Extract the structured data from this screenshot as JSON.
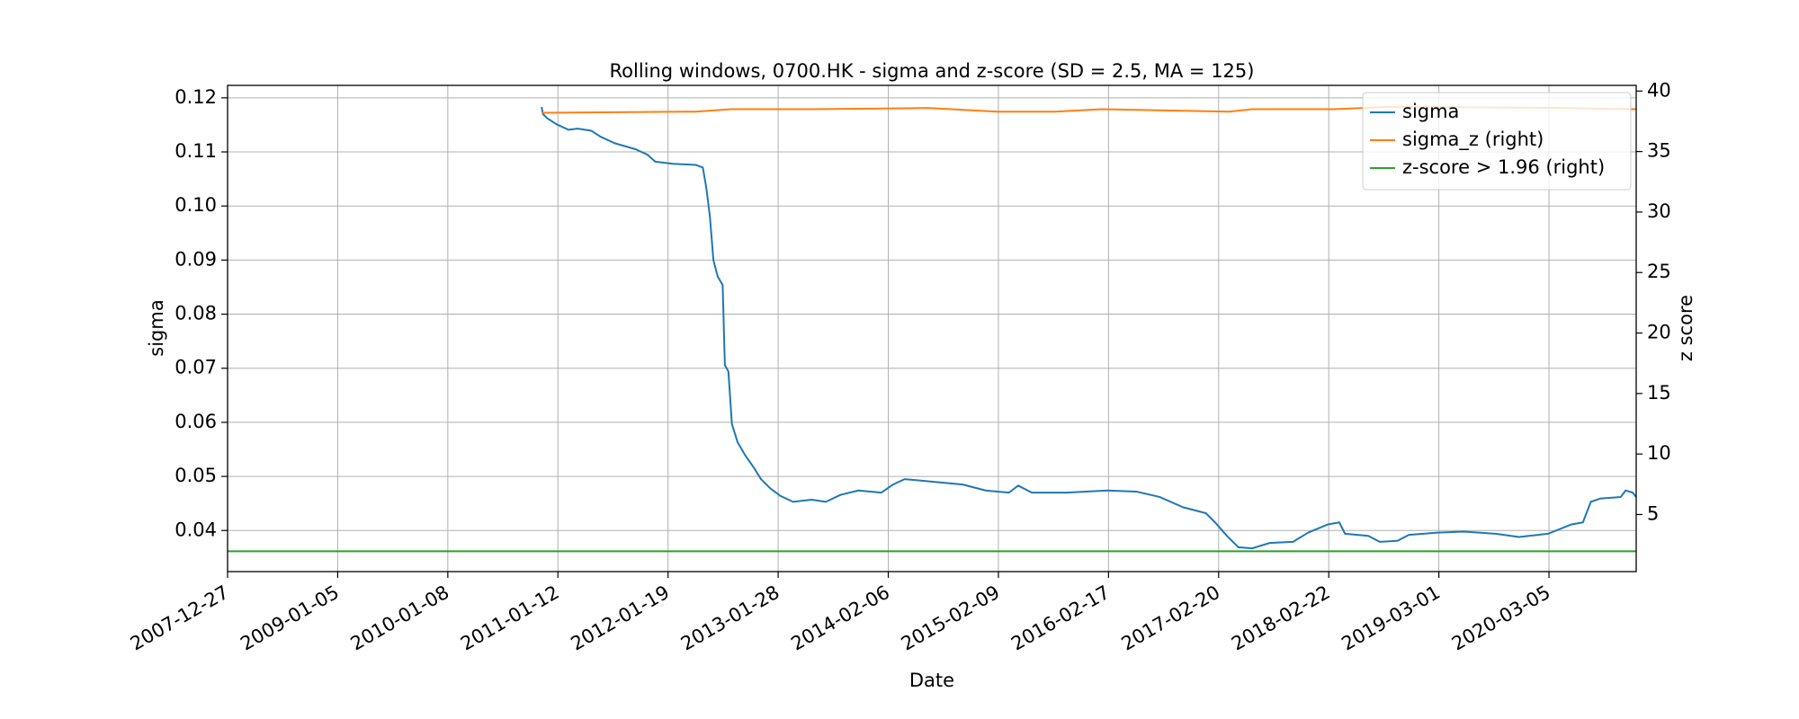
{
  "chart_data": {
    "type": "line",
    "title": "Rolling windows, 0700.HK - sigma and z-score (SD = 2.5, MA = 125)",
    "x_label": "Date",
    "y_label": "sigma",
    "y2_label": "z score",
    "xlim": [
      0,
      3198
    ],
    "xticks": [
      {
        "value": 0,
        "label": "2007-12-27"
      },
      {
        "value": 250,
        "label": "2009-01-05"
      },
      {
        "value": 500,
        "label": "2010-01-08"
      },
      {
        "value": 750,
        "label": "2011-01-12"
      },
      {
        "value": 1000,
        "label": "2012-01-19"
      },
      {
        "value": 1250,
        "label": "2013-01-28"
      },
      {
        "value": 1500,
        "label": "2014-02-06"
      },
      {
        "value": 1750,
        "label": "2015-02-09"
      },
      {
        "value": 2000,
        "label": "2016-02-17"
      },
      {
        "value": 2250,
        "label": "2017-02-20"
      },
      {
        "value": 2500,
        "label": "2018-02-22"
      },
      {
        "value": 2750,
        "label": "2019-03-01"
      },
      {
        "value": 3000,
        "label": "2020-03-05"
      }
    ],
    "ylim": [
      0.0324,
      0.1223
    ],
    "yticks": [
      0.04,
      0.05,
      0.06,
      0.07,
      0.08,
      0.09,
      {
        "value": 0.1,
        "label": "0.10"
      },
      0.11,
      0.12
    ],
    "y2lim": [
      0.28,
      40.47
    ],
    "y2ticks": [
      5,
      10,
      15,
      20,
      25,
      30,
      35,
      40
    ],
    "grid": true,
    "legend": "upper right",
    "series": [
      {
        "name": "sigma",
        "color": "#1f77b4",
        "x": [
          713,
          716,
          726,
          747,
          774,
          795,
          826,
          847,
          879,
          926,
          953,
          971,
          1011,
          1063,
          1079,
          1087,
          1095,
          1103,
          1113,
          1124,
          1129,
          1137,
          1145,
          1158,
          1176,
          1195,
          1211,
          1232,
          1255,
          1284,
          1326,
          1358,
          1392,
          1432,
          1484,
          1511,
          1537,
          1590,
          1669,
          1721,
          1774,
          1795,
          1826,
          1905,
          1997,
          2063,
          2116,
          2169,
          2221,
          2242,
          2269,
          2295,
          2326,
          2366,
          2419,
          2453,
          2497,
          2524,
          2537,
          2590,
          2616,
          2656,
          2682,
          2748,
          2806,
          2879,
          2932,
          2998,
          3050,
          3077,
          3095,
          3116,
          3163,
          3174,
          3190,
          3198
        ],
        "values": [
          0.1183,
          0.117,
          0.1162,
          0.1151,
          0.1141,
          0.1143,
          0.1139,
          0.1128,
          0.1116,
          0.1105,
          0.1095,
          0.1082,
          0.1078,
          0.1076,
          0.1071,
          0.1033,
          0.0981,
          0.09,
          0.0869,
          0.0854,
          0.0706,
          0.0694,
          0.0597,
          0.0563,
          0.0538,
          0.0516,
          0.0495,
          0.0478,
          0.0464,
          0.0453,
          0.0457,
          0.0453,
          0.0466,
          0.0474,
          0.047,
          0.0485,
          0.0495,
          0.0491,
          0.0485,
          0.0474,
          0.047,
          0.0483,
          0.047,
          0.047,
          0.0474,
          0.0472,
          0.0462,
          0.0443,
          0.0432,
          0.0415,
          0.039,
          0.0369,
          0.0367,
          0.0377,
          0.0379,
          0.0396,
          0.0411,
          0.0415,
          0.0394,
          0.039,
          0.0379,
          0.0381,
          0.0392,
          0.0396,
          0.0398,
          0.0394,
          0.0388,
          0.0394,
          0.0411,
          0.0415,
          0.0453,
          0.0459,
          0.0462,
          0.0474,
          0.047,
          0.0462
        ]
      },
      {
        "name": "sigma_z (right)",
        "color": "#ff7f0e",
        "axis": "y2",
        "x": [
          713,
          1063,
          1142,
          1326,
          1590,
          1747,
          1879,
          1984,
          2274,
          2326,
          2511,
          2643,
          3037,
          3198
        ],
        "values": [
          38.2,
          38.3,
          38.5,
          38.5,
          38.6,
          38.3,
          38.3,
          38.5,
          38.3,
          38.5,
          38.5,
          38.7,
          38.6,
          38.5
        ]
      },
      {
        "name": "z-score > 1.96 (right)",
        "color": "#2ca02c",
        "axis": "y2",
        "x": [
          0,
          3198
        ],
        "values": [
          1.96,
          1.96
        ]
      }
    ]
  }
}
